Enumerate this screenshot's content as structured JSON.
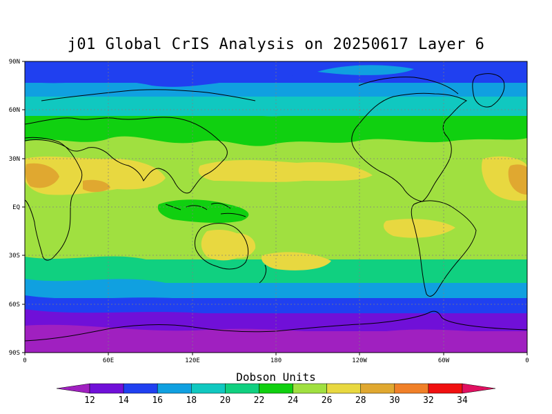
{
  "title": "j01 Global CrIS Analysis on 20250617 Layer 6",
  "lat_labels": [
    "90N",
    "60N",
    "30N",
    "EQ",
    "30S",
    "60S",
    "90S"
  ],
  "lon_labels": [
    "0",
    "60E",
    "120E",
    "180",
    "120W",
    "60W",
    "0"
  ],
  "colorbar": {
    "title": "Dobson Units",
    "levels": [
      "12",
      "14",
      "16",
      "18",
      "20",
      "22",
      "24",
      "26",
      "28",
      "30",
      "32",
      "34"
    ],
    "colors": [
      "#a020c0",
      "#7010d8",
      "#2040f0",
      "#10a0e0",
      "#10c8c0",
      "#10d080",
      "#10d010",
      "#a0e040",
      "#e8d840",
      "#e0a830",
      "#f08028",
      "#f01010",
      "#e01060"
    ]
  },
  "map_colors": {
    "band_90n_75n": "#2040f0",
    "band_75n_65n": "#10a0e0",
    "band_65n_55n": "#10c8c0",
    "band_55n_45n": "#10d010",
    "band_45n_35s": "#a0e040",
    "band_35s_45s": "#10d080",
    "band_45s_55s": "#10a0e0",
    "band_55s_65s": "#2040f0",
    "band_65s_75s": "#7010d8",
    "band_75s_90s": "#a020c0",
    "high_ozone_tropics": "#e8d840",
    "peak_ozone": "#e0a830",
    "coastline": "#000000",
    "grid": "#808080"
  }
}
